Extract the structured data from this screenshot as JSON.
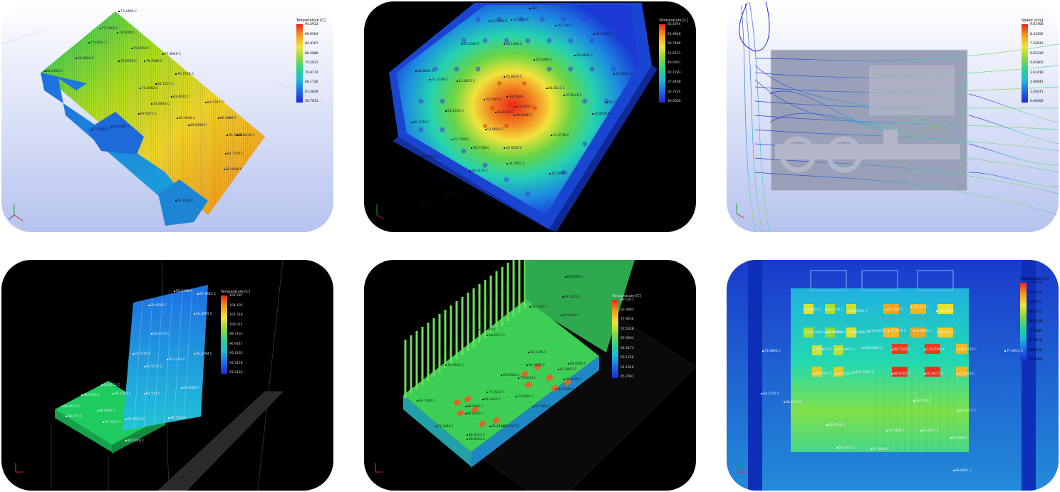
{
  "panels": [
    {
      "id": "p1",
      "legend": {
        "title": "Temperature [C]",
        "values": [
          "94.4912",
          "89.6564",
          "84.9167",
          "80.2088",
          "75.5021",
          "70.8174",
          "66.1726",
          "61.4828",
          "56.7631"
        ]
      },
      "probes": [
        "73.4480 C",
        "71.7902 C",
        "76.0095 C",
        "73.0401 C",
        "75.8762 C",
        "64.5834 C",
        "79.3546 C",
        "75.8758 C",
        "77.8949 C",
        "61.2350 C",
        "76.7256 C",
        "75.0082 C",
        "81.1127 C",
        "83.4622 C",
        "84.5327 C",
        "74.8841 C",
        "67.6271 C",
        "85.3046 C",
        "89.0296 C",
        "86.2886 C",
        "57.1857 C",
        "63.1085 C",
        "91.3462 C",
        "85.5195 C",
        "91.7707 C",
        "82.4658 C",
        "63.1808 C"
      ]
    },
    {
      "id": "p2",
      "legend": {
        "title": "Temperature [C]",
        "values": [
          "65.1974",
          "61.9948",
          "56.7486",
          "51.6171",
          "46.0937",
          "42.1783",
          "37.4468",
          "32.7224",
          "28.0000"
        ]
      },
      "probes": [
        "28 C",
        "33.1414 C",
        "33.7155 C",
        "35.2145 C",
        "31.7580 C",
        "34.3249 C",
        "40.1466 C",
        "42.6386 C",
        "32.0492 C",
        "35.4050 C",
        "34.8805 C",
        "41.6011 C",
        "45.6635 C",
        "41.8113 C",
        "51.3208 C",
        "28 C",
        "Hot Plate",
        "37.8140 C",
        "51.1705 C",
        "55.2607 C",
        "33.7201 C",
        "34.8656 C",
        "58.6428 C",
        "56.2276 C",
        "46.3496 C",
        "51.9663 C",
        "43.7190 C",
        "45.9335 C",
        "35.7716 C",
        "34.7951 C",
        "41.2716 C",
        "51.1838 C",
        "36.7179 C",
        "35.7290 C",
        "34.4405 C",
        "34.5675 C",
        "28 C"
      ]
    },
    {
      "id": "p3",
      "legend": {
        "title": "Speed [m/s]",
        "values": [
          "9.63768",
          "8.43292",
          "7.22815",
          "6.02339",
          "4.81863",
          "3.61418",
          "2.40942",
          "1.20471",
          "0.00000"
        ]
      },
      "probes": []
    },
    {
      "id": "p4",
      "legend": {
        "title": "Temperature [C]",
        "values": [
          "105.597",
          "104.105",
          "102.318",
          "100.512",
          "98.7131",
          "96.9147",
          "95.1162",
          "93.3178",
          "91.5193"
        ]
      },
      "probes": [
        "93.3198 C",
        "97.4845 C",
        "92.4582 C",
        "92.3065 C",
        "93.3573 C",
        "92.5764 C",
        "92.5575 C",
        "92.1181 C",
        "92.3294 C",
        "94.4751 C",
        "96.1261 C",
        "98.1750 C",
        "92.554 C",
        "91.9062 C",
        "98.4675 C",
        "98.9922 C",
        "96.175 C",
        "97.0547 C",
        "94.7823 C",
        "95.5029 C",
        "96.7520 C"
      ]
    },
    {
      "id": "p5",
      "legend": {
        "title": "Temperature [C]",
        "values": [
          "88.5311",
          "83.3883",
          "77.9456",
          "72.5028",
          "67.0601",
          "61.6173",
          "56.1746",
          "51.1319",
          "45.7091"
        ]
      },
      "probes": [
        "68.8180 C",
        "64.2145 C",
        "66.7335 C",
        "69.2292 C",
        "68.4665 C",
        "68.5227 C",
        "84.3145 C",
        "69.0095 C",
        "86.3585 C",
        "82.2861 C",
        "73.6031 C",
        "69.0505 C",
        "84.0400 C",
        "86.3588 C",
        "70.5442 C",
        "77.9817 C",
        "72.8181 C",
        "64.7460 C",
        "85.3333 C",
        "84.6433 C",
        "74.7862 C",
        "71.3248 C",
        "86.6233 C",
        "84.4453 C",
        "85.8126 C",
        "88.8164 C",
        "85.5523 C"
      ]
    },
    {
      "id": "p6",
      "legend": {
        "title": "Temperature [C]",
        "values": [
          "118.226",
          "110.575",
          "101.921",
          "93.2675",
          "84.6148",
          "75.9585",
          "67.3070",
          "58.6535",
          "50.0000"
        ]
      },
      "probes": [
        "59.9822 C",
        "60.1322 C",
        "61.1812 C",
        "96.2342 C",
        "109.513 C",
        "116.948 C",
        "96.7370 C",
        "108.9981 C",
        "109.825 C",
        "79.8470 C",
        "85.8680 C",
        "84.4335 C",
        "106.3281 C",
        "106.8261 C",
        "78.6878 C",
        "108.4651 C",
        "109.6961 C",
        "94.7123 C",
        "116.2193 C",
        "119.2015 C",
        "95.8901 C",
        "94.1210 C",
        "101.9381 C",
        "80.8101 C",
        "81.8411 C",
        "72.8893 C",
        "72.6893 C",
        "77.8915 C",
        "84.2235 C",
        "80.2219 C",
        "85.8740 C",
        "83.7749 C",
        "80.2777 C",
        "78.2468 C",
        "85.6451 C",
        "62.8984 C",
        "65.5617 C",
        "67.4849 C",
        "68.8841 C"
      ]
    }
  ]
}
